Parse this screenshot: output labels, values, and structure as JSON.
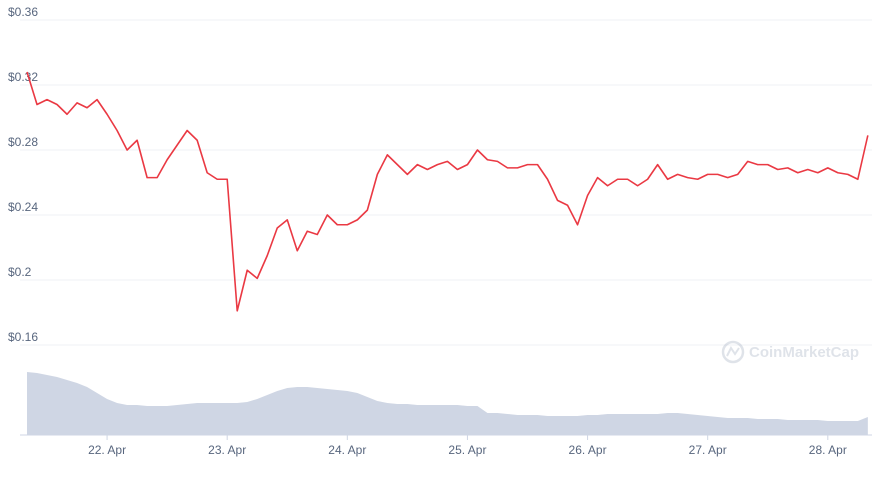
{
  "chart_data": {
    "type": "line",
    "categories": [
      null,
      null,
      null,
      null,
      null,
      null,
      null,
      null,
      "22. Apr",
      null,
      null,
      null,
      null,
      null,
      null,
      null,
      null,
      null,
      null,
      null,
      "23. Apr",
      null,
      null,
      null,
      null,
      null,
      null,
      null,
      null,
      null,
      null,
      null,
      "24. Apr",
      null,
      null,
      null,
      null,
      null,
      null,
      null,
      null,
      null,
      null,
      null,
      "25. Apr",
      null,
      null,
      null,
      null,
      null,
      null,
      null,
      null,
      null,
      null,
      null,
      "26. Apr",
      null,
      null,
      null,
      null,
      null,
      null,
      null,
      null,
      null,
      null,
      null,
      "27. Apr",
      null,
      null,
      null,
      null,
      null,
      null,
      null,
      null,
      null,
      null,
      null,
      "28. Apr",
      null,
      null,
      null,
      null
    ],
    "series": [
      {
        "color": "#ea3943",
        "values": [
          0.328,
          0.308,
          0.311,
          0.308,
          0.302,
          0.309,
          0.306,
          0.311,
          0.302,
          0.292,
          0.28,
          0.286,
          0.263,
          0.263,
          0.274,
          0.283,
          0.292,
          0.286,
          0.266,
          0.262,
          0.262,
          0.181,
          0.206,
          0.201,
          0.215,
          0.232,
          0.237,
          0.218,
          0.23,
          0.228,
          0.24,
          0.234,
          0.234,
          0.237,
          0.243,
          0.265,
          0.277,
          0.271,
          0.265,
          0.271,
          0.268,
          0.271,
          0.273,
          0.268,
          0.271,
          0.28,
          0.274,
          0.273,
          0.269,
          0.269,
          0.271,
          0.271,
          0.262,
          0.249,
          0.246,
          0.234,
          0.252,
          0.263,
          0.258,
          0.262,
          0.262,
          0.258,
          0.262,
          0.271,
          0.262,
          0.265,
          0.263,
          0.262,
          0.265,
          0.265,
          0.263,
          0.265,
          0.273,
          0.271,
          0.271,
          0.268,
          0.269,
          0.266,
          0.268,
          0.266,
          0.269,
          0.266,
          0.265,
          0.262,
          0.289
        ]
      },
      {
        "color": "#cfd6e4",
        "axis": "y2",
        "values": [
          63,
          62,
          60,
          58,
          55,
          52,
          48,
          42,
          36,
          32,
          30,
          30,
          29,
          29,
          29,
          30,
          31,
          32,
          32,
          32,
          32,
          32,
          33,
          36,
          40,
          44,
          47,
          48,
          48,
          47,
          46,
          45,
          44,
          42,
          38,
          34,
          32,
          31,
          31,
          30,
          30,
          30,
          30,
          30,
          29,
          29,
          22,
          22,
          21,
          20,
          20,
          20,
          19,
          19,
          19,
          19,
          20,
          20,
          21,
          21,
          21,
          21,
          21,
          21,
          22,
          22,
          21,
          20,
          19,
          18,
          17,
          17,
          17,
          16,
          16,
          16,
          15,
          15,
          15,
          15,
          14,
          14,
          14,
          14,
          18
        ]
      }
    ],
    "ylim": [
      0.16,
      0.36
    ],
    "yticks": [
      {
        "value": 0.16,
        "label": "$0.16"
      },
      {
        "value": 0.2,
        "label": "$0.2"
      },
      {
        "value": 0.24,
        "label": "$0.24"
      },
      {
        "value": 0.28,
        "label": "$0.28"
      },
      {
        "value": 0.32,
        "label": "$0.32"
      },
      {
        "value": 0.36,
        "label": "$0.36"
      }
    ],
    "y2lim": [
      0,
      100
    ],
    "grid": true,
    "watermark": "CoinMarketCap"
  }
}
